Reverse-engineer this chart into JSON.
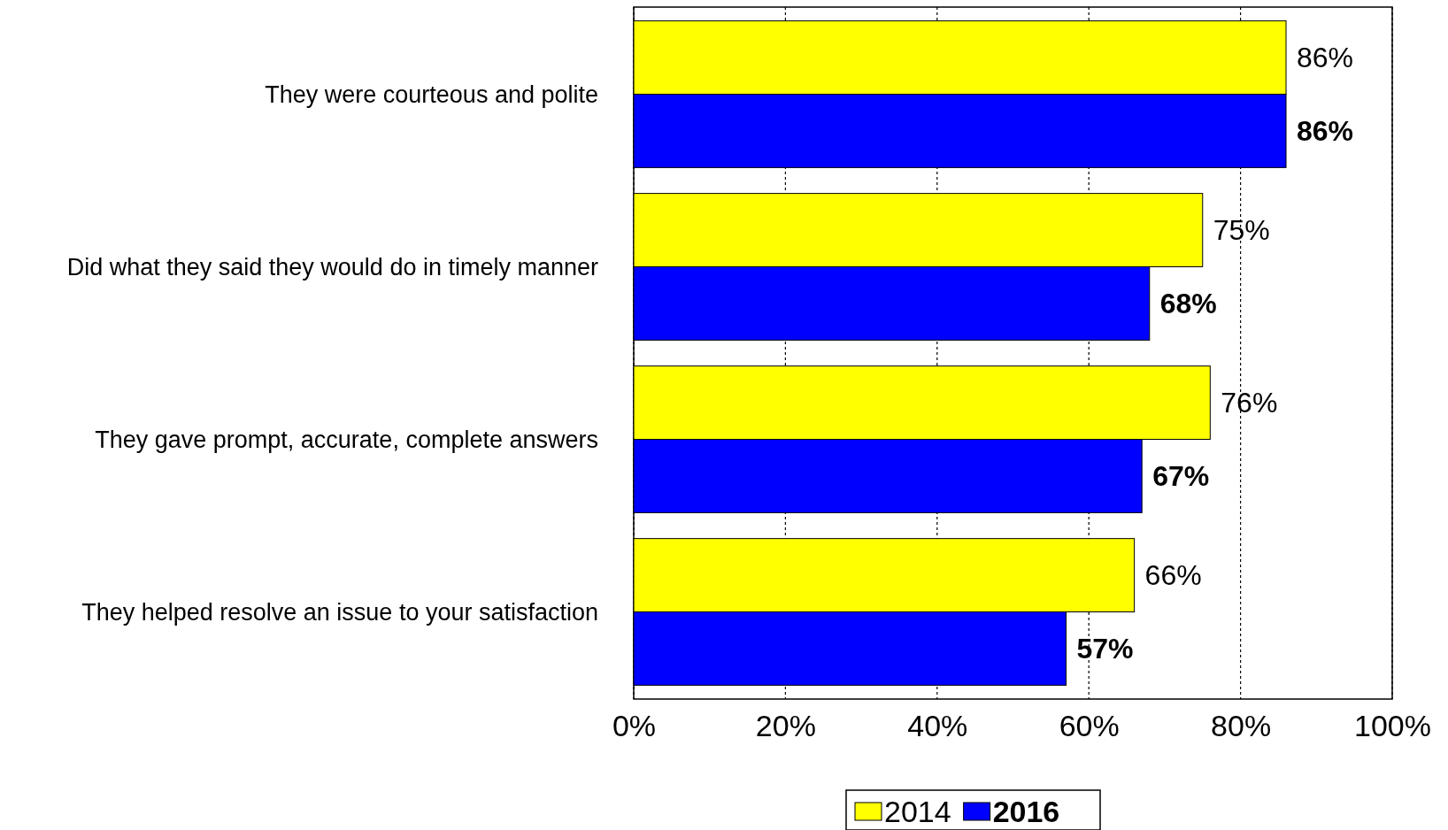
{
  "chart_data": {
    "type": "bar",
    "orientation": "horizontal",
    "categories": [
      "They were courteous and polite",
      "Did what they said they would do in timely manner",
      "They gave prompt, accurate, complete answers",
      "They helped resolve an issue to your satisfaction"
    ],
    "series": [
      {
        "name": "2014",
        "color": "#ffff00",
        "values": [
          86,
          75,
          76,
          66
        ],
        "value_labels": [
          "86%",
          "75%",
          "76%",
          "66%"
        ]
      },
      {
        "name": "2016",
        "color": "#0000ff",
        "values": [
          86,
          68,
          67,
          57
        ],
        "value_labels": [
          "86%",
          "68%",
          "67%",
          "57%"
        ]
      }
    ],
    "xlim": [
      0,
      100
    ],
    "xticks": [
      {
        "value": 0,
        "label": "0%"
      },
      {
        "value": 20,
        "label": "20%"
      },
      {
        "value": 40,
        "label": "40%"
      },
      {
        "value": 60,
        "label": "60%"
      },
      {
        "value": 80,
        "label": "80%"
      },
      {
        "value": 100,
        "label": "100%"
      }
    ],
    "grid": "x",
    "legend": "bottom"
  }
}
